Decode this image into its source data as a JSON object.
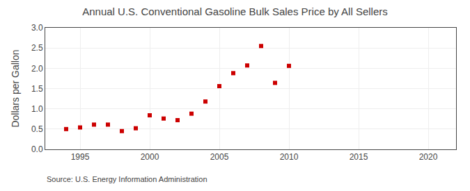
{
  "chart_data": {
    "type": "scatter",
    "title": "Annual U.S. Conventional Gasoline Bulk Sales Price by All Sellers",
    "ylabel": "Dollars per Gallon",
    "annotations": [
      "Source: U.S. Energy Information Administration"
    ],
    "x": [
      1994,
      1995,
      1996,
      1997,
      1998,
      1999,
      2000,
      2001,
      2002,
      2003,
      2004,
      2005,
      2006,
      2007,
      2008,
      2009,
      2010
    ],
    "values": [
      0.5,
      0.54,
      0.61,
      0.61,
      0.45,
      0.52,
      0.84,
      0.76,
      0.72,
      0.88,
      1.18,
      1.56,
      1.88,
      2.07,
      2.55,
      1.64,
      2.06
    ],
    "color": "#cc0000",
    "marker": "square",
    "xlim": [
      1992.5,
      2022
    ],
    "xticks": [
      1995,
      2000,
      2005,
      2010,
      2015,
      2020
    ],
    "ylim": [
      0.0,
      3.0
    ],
    "yticks": [
      {
        "value": 0.0,
        "label": "0.0"
      },
      0.5,
      {
        "value": 1.0,
        "label": "1.0"
      },
      1.5,
      {
        "value": 2.0,
        "label": "2.0"
      },
      2.5,
      {
        "value": 3.0,
        "label": "3.0"
      }
    ],
    "grid": true
  }
}
